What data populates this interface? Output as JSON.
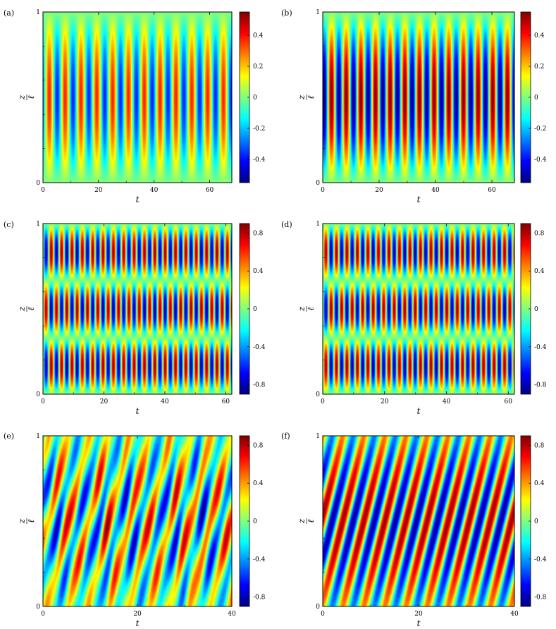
{
  "figure": {
    "colors": {
      "jet": [
        "#00008f",
        "#0000ff",
        "#0080ff",
        "#00ffff",
        "#80ff80",
        "#ffff00",
        "#ff8000",
        "#ff0000",
        "#800000"
      ],
      "frame": "#000000",
      "background": "#ffffff"
    }
  },
  "chart_data": [
    {
      "type": "heatmap",
      "panel_label": "(a)",
      "xlabel": "t",
      "ylabel": "z / ℓ",
      "xlim": [
        0,
        68
      ],
      "ylim": [
        0,
        1
      ],
      "xticks": [
        0,
        20,
        40,
        60
      ],
      "yticks": [
        0,
        1
      ],
      "colorbar": {
        "min": -0.55,
        "max": 0.55,
        "ticks": [
          -0.4,
          -0.2,
          0,
          0.2,
          0.4
        ]
      },
      "pattern": {
        "kind": "standing",
        "modes": 1,
        "period": 5.7,
        "amplitude": 0.38,
        "phase": 0.6
      }
    },
    {
      "type": "heatmap",
      "panel_label": "(b)",
      "xlabel": "t",
      "ylabel": "z / ℓ",
      "xlim": [
        0,
        68
      ],
      "ylim": [
        0,
        1
      ],
      "xticks": [
        0,
        20,
        40,
        60
      ],
      "yticks": [
        0,
        1
      ],
      "colorbar": {
        "min": -0.55,
        "max": 0.55,
        "ticks": [
          -0.4,
          -0.2,
          0,
          0.2,
          0.4
        ]
      },
      "pattern": {
        "kind": "standing",
        "modes": 1,
        "period": 5.2,
        "amplitude": 0.55,
        "phase": 0.4
      }
    },
    {
      "type": "heatmap",
      "panel_label": "(c)",
      "xlabel": "t",
      "ylabel": "z / ℓ",
      "xlim": [
        0,
        62
      ],
      "ylim": [
        0,
        1
      ],
      "xticks": [
        0,
        20,
        40,
        60
      ],
      "yticks": [
        0,
        1
      ],
      "colorbar": {
        "min": -0.9,
        "max": 0.9,
        "ticks": [
          -0.8,
          -0.4,
          0,
          0.4,
          0.8
        ]
      },
      "pattern": {
        "kind": "standing",
        "modes": 3,
        "period": 3.4,
        "amplitude": 0.85,
        "phase": 0.2
      }
    },
    {
      "type": "heatmap",
      "panel_label": "(d)",
      "xlabel": "t",
      "ylabel": "z / ℓ",
      "xlim": [
        0,
        62
      ],
      "ylim": [
        0,
        1
      ],
      "xticks": [
        0,
        20,
        40,
        60
      ],
      "yticks": [
        0,
        1
      ],
      "colorbar": {
        "min": -0.9,
        "max": 0.9,
        "ticks": [
          -0.8,
          -0.4,
          0,
          0.4,
          0.8
        ]
      },
      "pattern": {
        "kind": "standing",
        "modes": 3,
        "period": 3.4,
        "amplitude": 0.85,
        "phase": 0.7
      }
    },
    {
      "type": "heatmap",
      "panel_label": "(e)",
      "xlabel": "t",
      "ylabel": "z / ℓ",
      "xlim": [
        0,
        40
      ],
      "ylim": [
        0,
        1
      ],
      "xticks": [
        0,
        20,
        40
      ],
      "yticks": [
        0,
        1
      ],
      "colorbar": {
        "min": -0.9,
        "max": 0.9,
        "ticks": [
          -0.8,
          -0.4,
          0,
          0.4,
          0.8
        ]
      },
      "pattern": {
        "kind": "irregular-traveling",
        "modes": 2,
        "period": 4.3,
        "amplitude": 0.8,
        "phase": 0.0,
        "tilt": 3.2
      }
    },
    {
      "type": "heatmap",
      "panel_label": "(f)",
      "xlabel": "t",
      "ylabel": "z / ℓ",
      "xlim": [
        0,
        40
      ],
      "ylim": [
        0,
        1
      ],
      "xticks": [
        0,
        20,
        40
      ],
      "yticks": [
        0,
        1
      ],
      "colorbar": {
        "min": -0.9,
        "max": 0.9,
        "ticks": [
          -0.8,
          -0.4,
          0,
          0.4,
          0.8
        ]
      },
      "pattern": {
        "kind": "traveling",
        "modes": 2,
        "period": 4.4,
        "amplitude": 0.85,
        "phase": 0.3,
        "tilt": 3.0
      }
    }
  ]
}
